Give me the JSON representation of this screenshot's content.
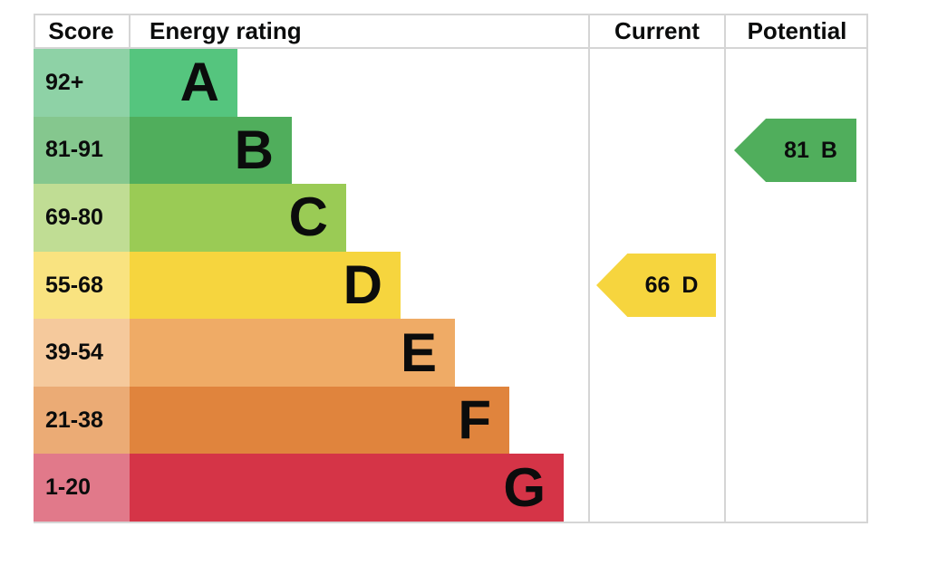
{
  "chart_data": {
    "type": "bar",
    "subtype": "epc-energy-rating-chart",
    "headers": {
      "score": "Score",
      "rating": "Energy rating",
      "current": "Current",
      "potential": "Potential"
    },
    "bands": [
      {
        "score": "92+",
        "letter": "A",
        "color": "#55c57e",
        "score_cell_color": "#8ed2a6"
      },
      {
        "score": "81-91",
        "letter": "B",
        "color": "#50ae5c",
        "score_cell_color": "#85c78e"
      },
      {
        "score": "69-80",
        "letter": "C",
        "color": "#9acb55",
        "score_cell_color": "#c0dd94"
      },
      {
        "score": "55-68",
        "letter": "D",
        "color": "#f6d53e",
        "score_cell_color": "#f9e380"
      },
      {
        "score": "39-54",
        "letter": "E",
        "color": "#efab66",
        "score_cell_color": "#f5c99c"
      },
      {
        "score": "21-38",
        "letter": "F",
        "color": "#e0843d",
        "score_cell_color": "#ebab75"
      },
      {
        "score": "1-20",
        "letter": "G",
        "color": "#d53447",
        "score_cell_color": "#e1798a"
      }
    ],
    "current": {
      "value": "66",
      "letter": "D",
      "color": "#f6d53e"
    },
    "potential": {
      "value": "81",
      "letter": "B",
      "color": "#50ae5c"
    }
  }
}
